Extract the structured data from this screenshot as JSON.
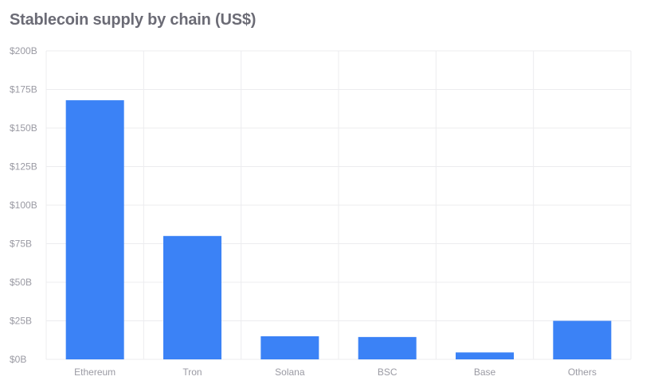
{
  "chart_data": {
    "type": "bar",
    "title": "Stablecoin supply by chain (US$)",
    "categories": [
      "Ethereum",
      "Tron",
      "Solana",
      "BSC",
      "Base",
      "Others"
    ],
    "values": [
      168,
      80,
      15,
      14.5,
      4.5,
      25
    ],
    "value_unit": "B",
    "ylim": [
      0,
      200
    ],
    "yticks": [
      0,
      25,
      50,
      75,
      100,
      125,
      150,
      175,
      200
    ],
    "ytick_labels": [
      "$0B",
      "$25B",
      "$50B",
      "$75B",
      "$100B",
      "$125B",
      "$150B",
      "$175B",
      "$200B"
    ],
    "xlabel": "",
    "ylabel": "",
    "grid": true,
    "bar_color": "#3b82f6",
    "grid_color": "#ececef",
    "text_color": "#9a9aa3",
    "title_color": "#6b6b75"
  }
}
